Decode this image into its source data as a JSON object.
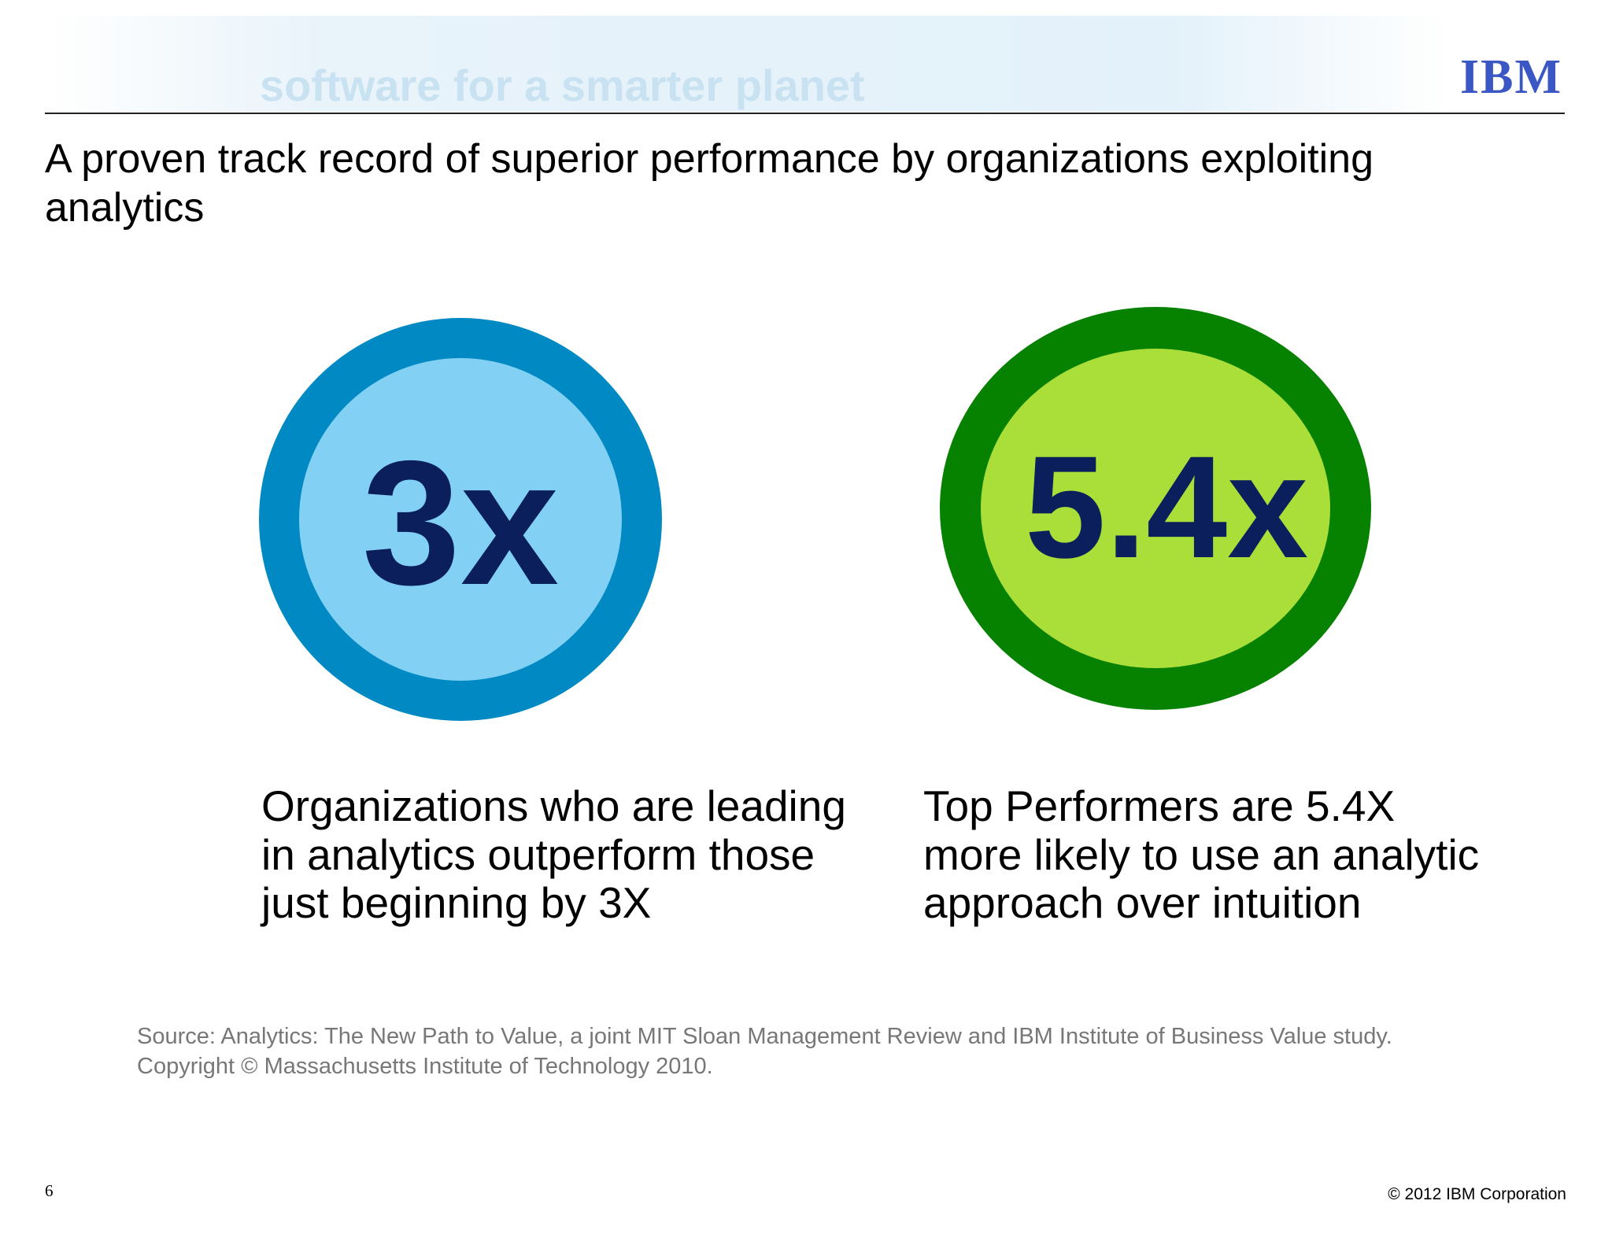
{
  "header": {
    "banner": "software for a smarter planet",
    "logo": "IBM"
  },
  "title": [
    "A proven track record of superior performance by organizations exploiting",
    "analytics"
  ],
  "stats": [
    {
      "figure": "3x",
      "caption": [
        "Organizations who are leading",
        "in analytics outperform those",
        "just beginning by 3X"
      ]
    },
    {
      "figure": "5.4x",
      "caption": [
        "Top Performers are 5.4X",
        "more likely to use an analytic",
        "approach over intuition"
      ]
    }
  ],
  "source": [
    "Source: Analytics: The New Path to Value, a joint MIT Sloan Management Review and IBM Institute of Business Value study.",
    "Copyright © Massachusetts Institute of Technology 2010."
  ],
  "footer": {
    "page": "6",
    "copyright": "© 2012 IBM Corporation"
  }
}
